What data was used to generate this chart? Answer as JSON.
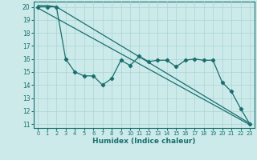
{
  "xlabel": "Humidex (Indice chaleur)",
  "bg_color": "#cceaea",
  "line_color": "#1a6e6e",
  "grid_color": "#aad4d4",
  "xlim": [
    -0.5,
    23.5
  ],
  "ylim": [
    10.7,
    20.4
  ],
  "yticks": [
    11,
    12,
    13,
    14,
    15,
    16,
    17,
    18,
    19,
    20
  ],
  "xticks": [
    0,
    1,
    2,
    3,
    4,
    5,
    6,
    7,
    8,
    9,
    10,
    11,
    12,
    13,
    14,
    15,
    16,
    17,
    18,
    19,
    20,
    21,
    22,
    23
  ],
  "line1_x": [
    0,
    1,
    2,
    23
  ],
  "line1_y": [
    20.1,
    20.1,
    20.0,
    11.05
  ],
  "line2_x": [
    0,
    23
  ],
  "line2_y": [
    19.9,
    10.95
  ],
  "line3_x": [
    0,
    1,
    2,
    3,
    4,
    5,
    6,
    7,
    8,
    9,
    10,
    11,
    12,
    13,
    14,
    15,
    16,
    17,
    18,
    19,
    20,
    21,
    22,
    23
  ],
  "line3_y": [
    20,
    20,
    20,
    16,
    15.0,
    14.7,
    14.7,
    14.0,
    14.5,
    15.9,
    15.5,
    16.2,
    15.8,
    15.9,
    15.9,
    15.4,
    15.9,
    16.0,
    15.9,
    15.9,
    14.2,
    13.5,
    12.2,
    11.0
  ]
}
